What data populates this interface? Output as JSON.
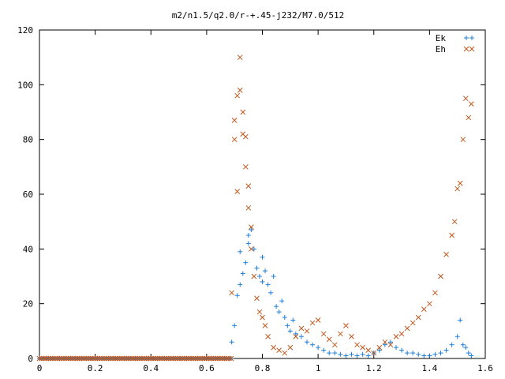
{
  "chart_data": {
    "type": "scatter",
    "title": "m2/n1.5/q2.0/r-+.45-j232/M7.0/512",
    "xlabel": "",
    "ylabel": "",
    "xlim": [
      0,
      1.6
    ],
    "ylim": [
      0,
      120
    ],
    "x_ticks": [
      0,
      0.2,
      0.4,
      0.6,
      0.8,
      1,
      1.2,
      1.4,
      1.6
    ],
    "x_tick_labels": [
      "0",
      "0.2",
      "0.4",
      "0.6",
      "0.8",
      "1",
      "1.2",
      "1.4",
      "1.6"
    ],
    "y_ticks": [
      0,
      20,
      40,
      60,
      80,
      100,
      120
    ],
    "y_tick_labels": [
      "0",
      "20",
      "40",
      "60",
      "80",
      "100",
      "120"
    ],
    "grid": false,
    "legend_position": "top-right",
    "series": [
      {
        "name": "Ek",
        "marker": "plus",
        "color": "#1f7fd6",
        "points": [
          [
            0.69,
            6
          ],
          [
            0.7,
            12
          ],
          [
            0.71,
            23
          ],
          [
            0.72,
            27
          ],
          [
            0.72,
            39
          ],
          [
            0.73,
            31
          ],
          [
            0.74,
            35
          ],
          [
            0.75,
            42
          ],
          [
            0.75,
            45
          ],
          [
            0.76,
            47
          ],
          [
            0.77,
            40
          ],
          [
            0.78,
            33
          ],
          [
            0.79,
            30
          ],
          [
            0.8,
            37
          ],
          [
            0.8,
            28
          ],
          [
            0.81,
            32
          ],
          [
            0.82,
            27
          ],
          [
            0.83,
            24
          ],
          [
            0.84,
            30
          ],
          [
            0.85,
            19
          ],
          [
            0.86,
            17
          ],
          [
            0.87,
            21
          ],
          [
            0.88,
            15
          ],
          [
            0.89,
            12
          ],
          [
            0.9,
            10
          ],
          [
            0.91,
            14
          ],
          [
            0.92,
            9
          ],
          [
            0.94,
            8
          ],
          [
            0.96,
            6
          ],
          [
            0.98,
            5
          ],
          [
            1.0,
            4
          ],
          [
            1.02,
            3
          ],
          [
            1.04,
            2
          ],
          [
            1.06,
            2
          ],
          [
            1.08,
            1.5
          ],
          [
            1.1,
            1
          ],
          [
            1.12,
            1.5
          ],
          [
            1.14,
            1
          ],
          [
            1.16,
            1.5
          ],
          [
            1.18,
            1
          ],
          [
            1.2,
            2
          ],
          [
            1.22,
            3
          ],
          [
            1.24,
            5
          ],
          [
            1.26,
            6
          ],
          [
            1.28,
            4
          ],
          [
            1.3,
            3
          ],
          [
            1.32,
            2
          ],
          [
            1.34,
            2
          ],
          [
            1.36,
            1.5
          ],
          [
            1.38,
            1
          ],
          [
            1.4,
            1
          ],
          [
            1.42,
            1.5
          ],
          [
            1.44,
            2
          ],
          [
            1.46,
            3
          ],
          [
            1.48,
            5
          ],
          [
            1.5,
            8
          ],
          [
            1.51,
            14
          ],
          [
            1.52,
            5
          ],
          [
            1.53,
            4
          ],
          [
            1.54,
            2
          ],
          [
            1.55,
            1
          ]
        ]
      },
      {
        "name": "Eh",
        "marker": "cross",
        "color": "#c0561a",
        "points": [
          [
            0.69,
            24
          ],
          [
            0.7,
            80
          ],
          [
            0.7,
            87
          ],
          [
            0.71,
            96
          ],
          [
            0.71,
            61
          ],
          [
            0.72,
            110
          ],
          [
            0.72,
            98
          ],
          [
            0.73,
            90
          ],
          [
            0.73,
            82
          ],
          [
            0.74,
            81
          ],
          [
            0.74,
            70
          ],
          [
            0.75,
            63
          ],
          [
            0.75,
            55
          ],
          [
            0.76,
            48
          ],
          [
            0.76,
            40
          ],
          [
            0.77,
            30
          ],
          [
            0.78,
            22
          ],
          [
            0.79,
            17
          ],
          [
            0.8,
            15
          ],
          [
            0.81,
            12
          ],
          [
            0.82,
            8
          ],
          [
            0.84,
            4
          ],
          [
            0.86,
            3
          ],
          [
            0.88,
            2
          ],
          [
            0.9,
            4
          ],
          [
            0.92,
            8
          ],
          [
            0.94,
            11
          ],
          [
            0.96,
            10
          ],
          [
            0.98,
            13
          ],
          [
            1.0,
            14
          ],
          [
            1.02,
            9
          ],
          [
            1.04,
            7
          ],
          [
            1.06,
            5
          ],
          [
            1.08,
            9
          ],
          [
            1.1,
            12
          ],
          [
            1.12,
            8
          ],
          [
            1.14,
            5
          ],
          [
            1.16,
            4
          ],
          [
            1.18,
            3
          ],
          [
            1.2,
            2
          ],
          [
            1.22,
            4
          ],
          [
            1.24,
            6
          ],
          [
            1.26,
            5
          ],
          [
            1.28,
            8
          ],
          [
            1.3,
            9
          ],
          [
            1.32,
            11
          ],
          [
            1.34,
            13
          ],
          [
            1.36,
            15
          ],
          [
            1.38,
            18
          ],
          [
            1.4,
            20
          ],
          [
            1.42,
            24
          ],
          [
            1.44,
            30
          ],
          [
            1.46,
            38
          ],
          [
            1.48,
            45
          ],
          [
            1.49,
            50
          ],
          [
            1.5,
            62
          ],
          [
            1.51,
            64
          ],
          [
            1.52,
            80
          ],
          [
            1.53,
            95
          ],
          [
            1.54,
            88
          ],
          [
            1.55,
            93
          ]
        ]
      }
    ]
  }
}
